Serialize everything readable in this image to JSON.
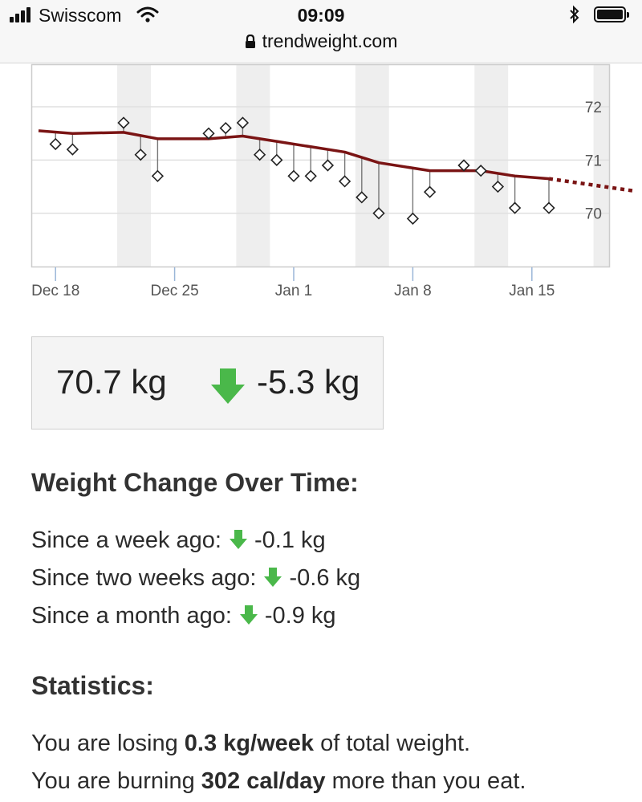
{
  "status_bar": {
    "carrier": "Swisscom",
    "time": "09:09",
    "url": "trendweight.com",
    "icons": [
      "signal-icon",
      "wifi-icon",
      "lock-icon",
      "bluetooth-icon",
      "battery-icon"
    ]
  },
  "chart_data": {
    "type": "line",
    "x_unit": "date",
    "x_ticks": [
      "Dec 18",
      "Dec 25",
      "Jan 1",
      "Jan 8",
      "Jan 15"
    ],
    "y_ticks": [
      "72",
      "71",
      "70"
    ],
    "ylim": [
      69.0,
      72.8
    ],
    "grid": true,
    "colors": {
      "trend": "#7a1414",
      "marker": "#222222",
      "drop_line": "#777777",
      "band": "#eeeeee"
    },
    "series": [
      {
        "type": "scatter-diamond",
        "points": [
          {
            "x": "Dec 18",
            "y": 71.3
          },
          {
            "x": "Dec 19",
            "y": 71.2
          },
          {
            "x": "Dec 22",
            "y": 71.7
          },
          {
            "x": "Dec 23",
            "y": 71.1
          },
          {
            "x": "Dec 24",
            "y": 70.7
          },
          {
            "x": "Dec 27",
            "y": 71.5
          },
          {
            "x": "Dec 28",
            "y": 71.6
          },
          {
            "x": "Dec 29",
            "y": 71.7
          },
          {
            "x": "Dec 30",
            "y": 71.1
          },
          {
            "x": "Dec 31",
            "y": 71.0
          },
          {
            "x": "Jan 1",
            "y": 70.7
          },
          {
            "x": "Jan 2",
            "y": 70.7
          },
          {
            "x": "Jan 3",
            "y": 70.9
          },
          {
            "x": "Jan 4",
            "y": 70.6
          },
          {
            "x": "Jan 5",
            "y": 70.3
          },
          {
            "x": "Jan 6",
            "y": 70.0
          },
          {
            "x": "Jan 8",
            "y": 69.9
          },
          {
            "x": "Jan 9",
            "y": 70.4
          },
          {
            "x": "Jan 11",
            "y": 70.9
          },
          {
            "x": "Jan 12",
            "y": 70.8
          },
          {
            "x": "Jan 13",
            "y": 70.5
          },
          {
            "x": "Jan 14",
            "y": 70.1
          },
          {
            "x": "Jan 16",
            "y": 70.1
          }
        ]
      },
      {
        "type": "trend-line",
        "points": [
          {
            "x": "Dec 17",
            "y": 71.55
          },
          {
            "x": "Dec 19",
            "y": 71.5
          },
          {
            "x": "Dec 22",
            "y": 71.52
          },
          {
            "x": "Dec 24",
            "y": 71.4
          },
          {
            "x": "Dec 27",
            "y": 71.4
          },
          {
            "x": "Dec 29",
            "y": 71.45
          },
          {
            "x": "Dec 31",
            "y": 71.35
          },
          {
            "x": "Jan 2",
            "y": 71.25
          },
          {
            "x": "Jan 4",
            "y": 71.15
          },
          {
            "x": "Jan 6",
            "y": 70.95
          },
          {
            "x": "Jan 9",
            "y": 70.8
          },
          {
            "x": "Jan 12",
            "y": 70.8
          },
          {
            "x": "Jan 14",
            "y": 70.7
          },
          {
            "x": "Jan 16",
            "y": 70.65
          }
        ]
      },
      {
        "type": "projection-dotted",
        "points": [
          {
            "x": "Jan 16",
            "y": 70.65
          },
          {
            "x": "Jan 21",
            "y": 70.42
          }
        ]
      }
    ]
  },
  "current": {
    "weight": "70.7 kg",
    "change": "-5.3 kg",
    "arrow_color": "#4ab84a"
  },
  "weight_change": {
    "heading": "Weight Change Over Time:",
    "items": [
      {
        "label": "Since a week ago:",
        "value": "-0.1 kg"
      },
      {
        "label": "Since two weeks ago:",
        "value": "-0.6 kg"
      },
      {
        "label": "Since a month ago:",
        "value": "-0.9 kg"
      }
    ]
  },
  "statistics": {
    "heading": "Statistics:",
    "line1": {
      "prefix": "You are losing ",
      "bold": "0.3 kg/week",
      "suffix": " of total weight."
    },
    "line2": {
      "prefix": "You are burning ",
      "bold": "302 cal/day",
      "suffix": " more than you eat."
    }
  }
}
